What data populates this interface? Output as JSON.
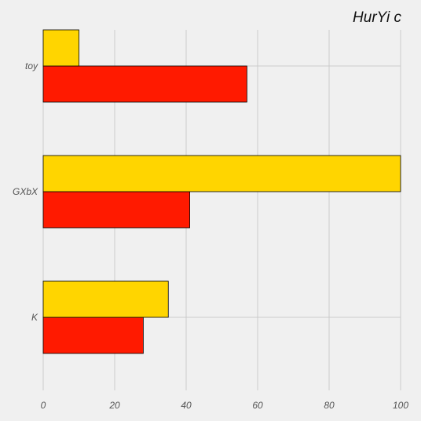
{
  "chart_data": {
    "type": "bar",
    "orientation": "horizontal",
    "title": "HurYi c",
    "categories": [
      "K",
      "GXbX",
      "toy"
    ],
    "series": [
      {
        "values": [
          28,
          41,
          57
        ],
        "color": "#ff1a00"
      },
      {
        "values": [
          35,
          100,
          10
        ],
        "color": "#ffd500"
      }
    ],
    "xlim": [
      0,
      100
    ],
    "xticks": [
      0,
      20,
      40,
      60,
      80,
      100
    ],
    "xlabel": "",
    "ylabel": "",
    "grid": true,
    "legend": "none"
  }
}
